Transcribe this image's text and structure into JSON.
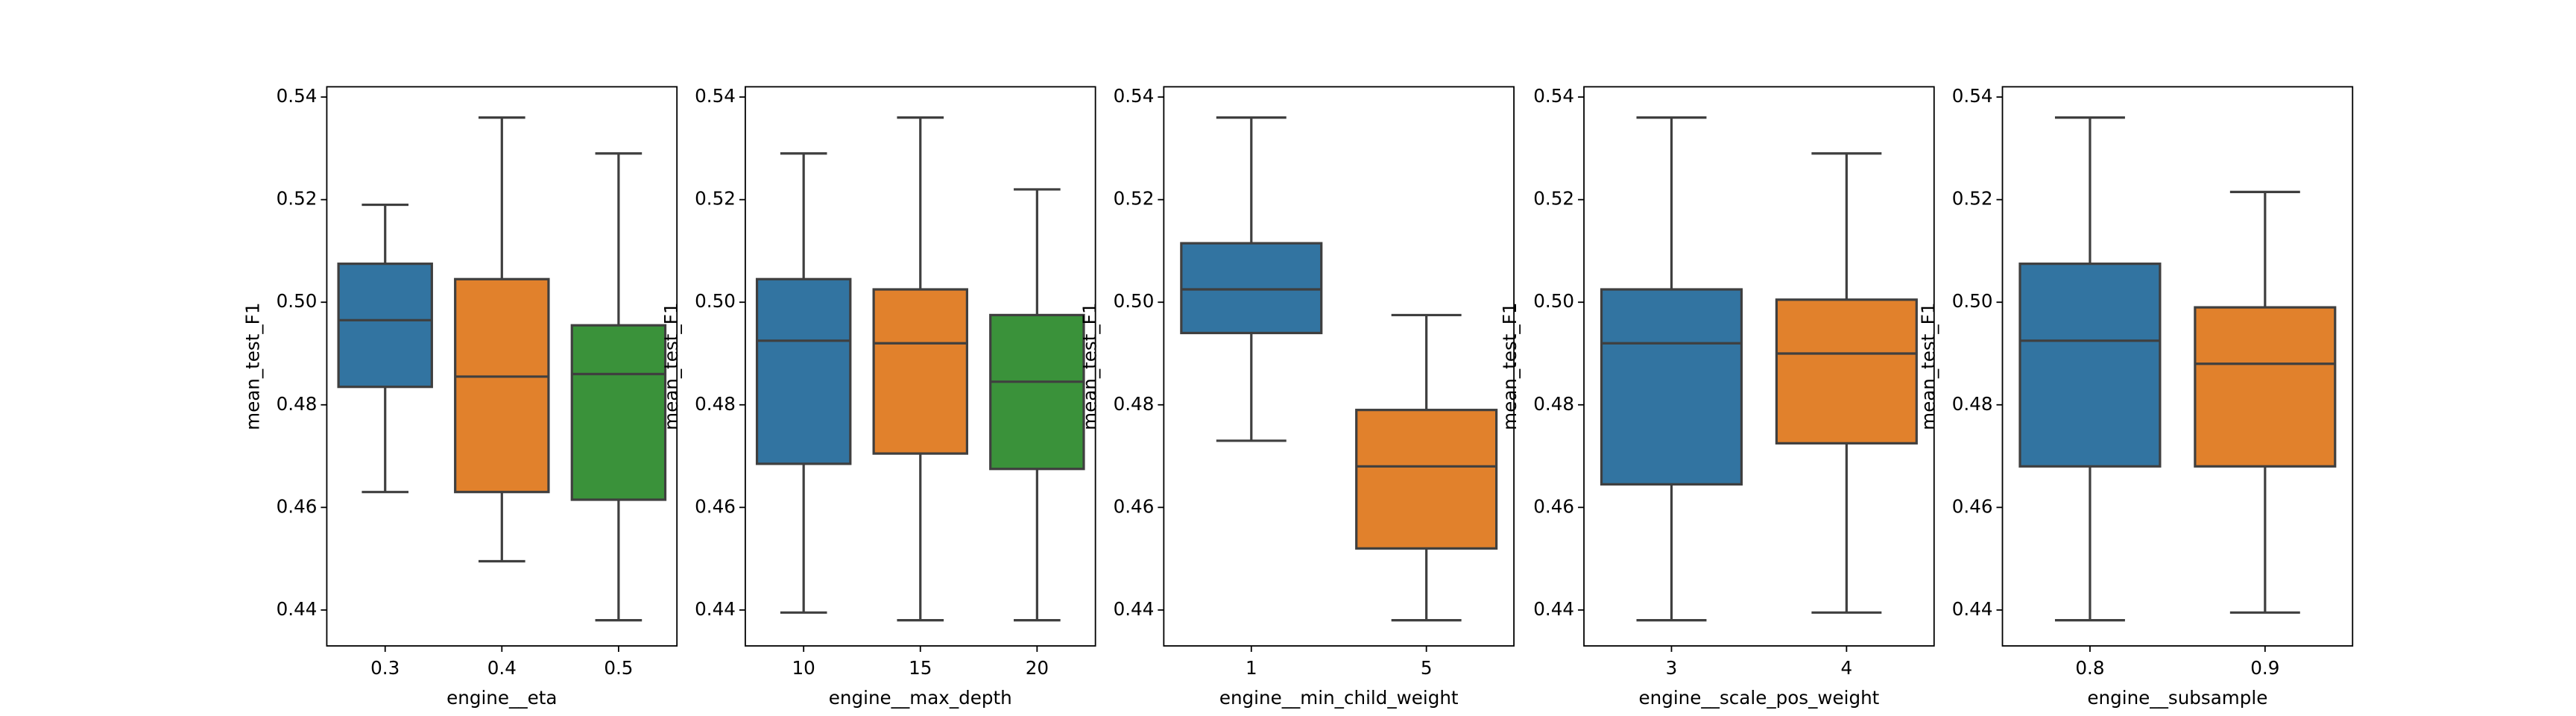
{
  "chart_data": [
    {
      "type": "box",
      "xlabel": "engine__eta",
      "ylabel": "mean_test_F1",
      "categories": [
        "0.3",
        "0.4",
        "0.5"
      ],
      "ylim": [
        0.433,
        0.542
      ],
      "yticks": [
        "0.44",
        "0.46",
        "0.48",
        "0.50",
        "0.52",
        "0.54"
      ],
      "boxes": [
        {
          "category": "0.3",
          "whisker_low": 0.463,
          "q1": 0.4835,
          "median": 0.4965,
          "q3": 0.5075,
          "whisker_high": 0.519,
          "color": "#3274a1"
        },
        {
          "category": "0.4",
          "whisker_low": 0.4495,
          "q1": 0.463,
          "median": 0.4855,
          "q3": 0.5045,
          "whisker_high": 0.536,
          "color": "#e1812c"
        },
        {
          "category": "0.5",
          "whisker_low": 0.438,
          "q1": 0.4615,
          "median": 0.486,
          "q3": 0.4955,
          "whisker_high": 0.529,
          "color": "#3a923a"
        }
      ]
    },
    {
      "type": "box",
      "xlabel": "engine__max_depth",
      "ylabel": "mean_test_F1",
      "categories": [
        "10",
        "15",
        "20"
      ],
      "ylim": [
        0.433,
        0.542
      ],
      "yticks": [
        "0.44",
        "0.46",
        "0.48",
        "0.50",
        "0.52",
        "0.54"
      ],
      "boxes": [
        {
          "category": "10",
          "whisker_low": 0.4395,
          "q1": 0.4685,
          "median": 0.4925,
          "q3": 0.5045,
          "whisker_high": 0.529,
          "color": "#3274a1"
        },
        {
          "category": "15",
          "whisker_low": 0.438,
          "q1": 0.4705,
          "median": 0.492,
          "q3": 0.5025,
          "whisker_high": 0.536,
          "color": "#e1812c"
        },
        {
          "category": "20",
          "whisker_low": 0.438,
          "q1": 0.4675,
          "median": 0.4845,
          "q3": 0.4975,
          "whisker_high": 0.522,
          "color": "#3a923a"
        }
      ]
    },
    {
      "type": "box",
      "xlabel": "engine__min_child_weight",
      "ylabel": "mean_test_F1",
      "categories": [
        "1",
        "5"
      ],
      "ylim": [
        0.433,
        0.542
      ],
      "yticks": [
        "0.44",
        "0.46",
        "0.48",
        "0.50",
        "0.52",
        "0.54"
      ],
      "boxes": [
        {
          "category": "1",
          "whisker_low": 0.473,
          "q1": 0.494,
          "median": 0.5025,
          "q3": 0.5115,
          "whisker_high": 0.536,
          "color": "#3274a1"
        },
        {
          "category": "5",
          "whisker_low": 0.438,
          "q1": 0.452,
          "median": 0.468,
          "q3": 0.479,
          "whisker_high": 0.4975,
          "color": "#e1812c"
        }
      ]
    },
    {
      "type": "box",
      "xlabel": "engine__scale_pos_weight",
      "ylabel": "mean_test_F1",
      "categories": [
        "3",
        "4"
      ],
      "ylim": [
        0.433,
        0.542
      ],
      "yticks": [
        "0.44",
        "0.46",
        "0.48",
        "0.50",
        "0.52",
        "0.54"
      ],
      "boxes": [
        {
          "category": "3",
          "whisker_low": 0.438,
          "q1": 0.4645,
          "median": 0.492,
          "q3": 0.5025,
          "whisker_high": 0.536,
          "color": "#3274a1"
        },
        {
          "category": "4",
          "whisker_low": 0.4395,
          "q1": 0.4725,
          "median": 0.49,
          "q3": 0.5005,
          "whisker_high": 0.529,
          "color": "#e1812c"
        }
      ]
    },
    {
      "type": "box",
      "xlabel": "engine__subsample",
      "ylabel": "mean_test_F1",
      "categories": [
        "0.8",
        "0.9"
      ],
      "ylim": [
        0.433,
        0.542
      ],
      "yticks": [
        "0.44",
        "0.46",
        "0.48",
        "0.50",
        "0.52",
        "0.54"
      ],
      "boxes": [
        {
          "category": "0.8",
          "whisker_low": 0.438,
          "q1": 0.468,
          "median": 0.4925,
          "q3": 0.5075,
          "whisker_high": 0.536,
          "color": "#3274a1"
        },
        {
          "category": "0.9",
          "whisker_low": 0.4395,
          "q1": 0.468,
          "median": 0.488,
          "q3": 0.499,
          "whisker_high": 0.5215,
          "color": "#e1812c"
        }
      ]
    }
  ]
}
